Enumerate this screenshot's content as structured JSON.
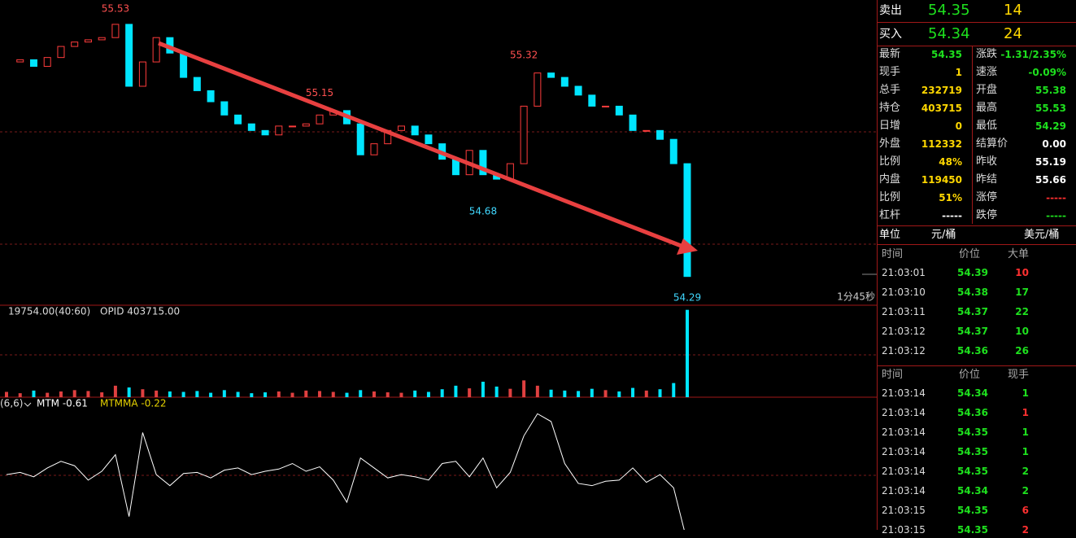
{
  "chart_data": {
    "type": "candle-close",
    "closes": [
      55.32,
      55.33,
      55.3,
      55.34,
      55.39,
      55.41,
      55.42,
      55.43,
      55.49,
      55.21,
      55.32,
      55.43,
      55.36,
      55.25,
      55.19,
      55.14,
      55.08,
      55.04,
      55.01,
      54.99,
      55.03,
      55.03,
      55.04,
      55.08,
      55.1,
      55.04,
      54.9,
      54.95,
      55.01,
      55.03,
      54.99,
      54.95,
      54.88,
      54.81,
      54.92,
      54.81,
      54.79,
      54.86,
      55.12,
      55.27,
      55.25,
      55.21,
      55.17,
      55.12,
      55.12,
      55.08,
      55.01,
      55.01,
      54.97,
      54.86,
      54.35
    ],
    "ylim": [
      54.22,
      55.6
    ],
    "annotations": [
      {
        "x": 8,
        "value": 55.53
      },
      {
        "x": 23,
        "value": 55.15
      },
      {
        "x": 38,
        "value": 55.32
      },
      {
        "x": 35,
        "value": 54.68
      },
      {
        "x": 50,
        "value": 54.29
      }
    ],
    "time_label": "1分45秒",
    "volume": {
      "legend": "19754.00(40:60)",
      "opi": "OPID 403715.00",
      "ylim": [
        0,
        20800
      ],
      "values": [
        1200,
        900,
        1500,
        1000,
        1300,
        1600,
        1400,
        1100,
        2600,
        2200,
        1800,
        1500,
        1300,
        1200,
        1400,
        1000,
        1600,
        1200,
        900,
        1100,
        1300,
        1000,
        1500,
        1400,
        1200,
        1000,
        1600,
        1300,
        1100,
        1000,
        1500,
        1200,
        1800,
        2600,
        2000,
        3500,
        2400,
        1900,
        3800,
        2600,
        1700,
        1500,
        1400,
        1900,
        1600,
        1300,
        2100,
        1500,
        1800,
        3200,
        19754
      ]
    },
    "mtm": {
      "params": "(6,6)",
      "legend": "MTM -0.61",
      "legend2": "MTMMA -0.22",
      "ylim": [
        -0.5,
        0.7
      ],
      "values": [
        0.0,
        0.02,
        -0.02,
        0.06,
        0.12,
        0.08,
        -0.05,
        0.03,
        0.18,
        -0.38,
        0.38,
        0.0,
        -0.1,
        0.01,
        0.02,
        -0.03,
        0.04,
        0.06,
        0.0,
        0.03,
        0.05,
        0.1,
        0.03,
        0.07,
        -0.05,
        -0.25,
        0.15,
        0.06,
        -0.03,
        0.0,
        -0.02,
        -0.05,
        0.1,
        0.12,
        -0.02,
        0.15,
        -0.12,
        0.02,
        0.35,
        0.55,
        0.48,
        0.1,
        -0.08,
        -0.1,
        -0.06,
        -0.05,
        0.06,
        -0.07,
        0.0,
        -0.12,
        -0.61
      ]
    }
  },
  "panel": {
    "quote": [
      {
        "label": "卖出",
        "price": "54.35",
        "qty": "14"
      },
      {
        "label": "买入",
        "price": "54.34",
        "qty": "24"
      }
    ],
    "stats": [
      {
        "l": "最新",
        "lv": "54.35",
        "lc": "#1ee01e",
        "r": "涨跌",
        "rv": "-1.31/2.35%",
        "rc": "#1ee01e"
      },
      {
        "l": "现手",
        "lv": "1",
        "lc": "#ffd700",
        "r": "速涨",
        "rv": "-0.09%",
        "rc": "#1ee01e"
      },
      {
        "l": "总手",
        "lv": "232719",
        "lc": "#ffd700",
        "r": "开盘",
        "rv": "55.38",
        "rc": "#1ee01e"
      },
      {
        "l": "持仓",
        "lv": "403715",
        "lc": "#ffd700",
        "r": "最高",
        "rv": "55.53",
        "rc": "#1ee01e"
      },
      {
        "l": "日增",
        "lv": "0",
        "lc": "#ffd700",
        "r": "最低",
        "rv": "54.29",
        "rc": "#1ee01e"
      },
      {
        "l": "外盘",
        "lv": "112332",
        "lc": "#ffd700",
        "r": "结算价",
        "rv": "0.00",
        "rc": "#ffffff"
      },
      {
        "l": "比例",
        "lv": "48%",
        "lc": "#ffd700",
        "r": "昨收",
        "rv": "55.19",
        "rc": "#ffffff"
      },
      {
        "l": "内盘",
        "lv": "119450",
        "lc": "#ffd700",
        "r": "昨结",
        "rv": "55.66",
        "rc": "#ffffff"
      },
      {
        "l": "比例",
        "lv": "51%",
        "lc": "#ffd700",
        "r": "涨停",
        "rv": "-----",
        "rc": "#ff3030"
      },
      {
        "l": "杠杆",
        "lv": "-----",
        "lc": "#ffffff",
        "r": "跌停",
        "rv": "-----",
        "rc": "#1ee01e"
      }
    ],
    "unit": {
      "label": "单位",
      "a": "元/桶",
      "b": "美元/桶"
    },
    "big": {
      "header": [
        "时间",
        "价位",
        "大单"
      ],
      "rows": [
        [
          "21:03:01",
          "54.39",
          "10",
          "#ff3030"
        ],
        [
          "21:03:10",
          "54.38",
          "17",
          "#1ee01e"
        ],
        [
          "21:03:11",
          "54.37",
          "22",
          "#1ee01e"
        ],
        [
          "21:03:12",
          "54.37",
          "10",
          "#1ee01e"
        ],
        [
          "21:03:12",
          "54.36",
          "26",
          "#1ee01e"
        ]
      ]
    },
    "ticks": {
      "header": [
        "时间",
        "价位",
        "现手"
      ],
      "rows": [
        [
          "21:03:14",
          "54.34",
          "1",
          "#1ee01e"
        ],
        [
          "21:03:14",
          "54.36",
          "1",
          "#ff3030"
        ],
        [
          "21:03:14",
          "54.35",
          "1",
          "#1ee01e"
        ],
        [
          "21:03:14",
          "54.35",
          "1",
          "#1ee01e"
        ],
        [
          "21:03:14",
          "54.35",
          "2",
          "#1ee01e"
        ],
        [
          "21:03:14",
          "54.34",
          "2",
          "#1ee01e"
        ],
        [
          "21:03:15",
          "54.35",
          "6",
          "#ff3030"
        ],
        [
          "21:03:15",
          "54.35",
          "2",
          "#ff3030"
        ]
      ]
    }
  }
}
